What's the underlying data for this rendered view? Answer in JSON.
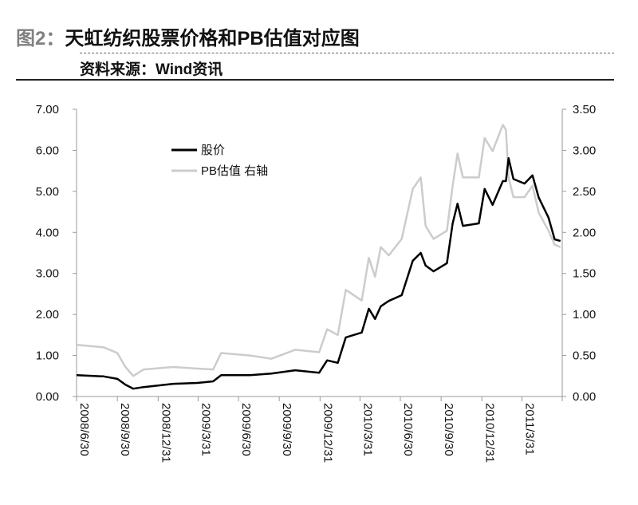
{
  "header": {
    "figure_number": "图2：",
    "title": "天虹纺织股票价格和PB估值对应图",
    "source": "资料来源：Wind资讯"
  },
  "chart_data": {
    "type": "line",
    "title": "天虹纺织股票价格和PB估值对应图",
    "x_ticks": [
      "2008/6/30",
      "2008/9/30",
      "2008/12/31",
      "2009/3/31",
      "2009/6/30",
      "2009/9/30",
      "2009/12/31",
      "2010/3/31",
      "2010/6/30",
      "2010/9/30",
      "2010/12/31",
      "2011/3/31"
    ],
    "x_range": [
      "2008/6/30",
      "2011/6/30"
    ],
    "y_left": {
      "ticks": [
        "0.00",
        "1.00",
        "2.00",
        "3.00",
        "4.00",
        "5.00",
        "6.00",
        "7.00"
      ],
      "range": [
        0,
        7
      ]
    },
    "y_right": {
      "ticks": [
        "0.00",
        "0.50",
        "1.00",
        "1.50",
        "2.00",
        "2.50",
        "3.00",
        "3.50"
      ],
      "range": [
        0,
        3.5
      ]
    },
    "legend_position": "top-left",
    "grid": false,
    "x": [
      "2008-06-30",
      "2008-08-30",
      "2008-09-30",
      "2008-10-18",
      "2008-11-05",
      "2008-11-28",
      "2009-02-03",
      "2009-03-29",
      "2009-05-04",
      "2009-05-22",
      "2009-07-26",
      "2009-09-12",
      "2009-11-05",
      "2009-12-29",
      "2010-01-16",
      "2010-02-09",
      "2010-02-27",
      "2010-04-04",
      "2010-04-20",
      "2010-05-04",
      "2010-05-17",
      "2010-06-04",
      "2010-07-03",
      "2010-07-28",
      "2010-08-15",
      "2010-08-26",
      "2010-09-13",
      "2010-10-13",
      "2010-10-26",
      "2010-11-06",
      "2010-11-18",
      "2010-12-24",
      "2011-01-06",
      "2011-01-24",
      "2011-02-16",
      "2011-02-23",
      "2011-03-01",
      "2011-03-12",
      "2011-04-06",
      "2011-04-24",
      "2011-05-08",
      "2011-05-30",
      "2011-06-13",
      "2011-06-26"
    ],
    "series": [
      {
        "name": "股价",
        "axis": "left",
        "color": "#000000",
        "values": [
          0.52,
          0.49,
          0.43,
          0.29,
          0.19,
          0.23,
          0.31,
          0.33,
          0.37,
          0.52,
          0.52,
          0.56,
          0.64,
          0.58,
          0.88,
          0.82,
          1.44,
          1.56,
          2.14,
          1.89,
          2.2,
          2.33,
          2.47,
          3.31,
          3.5,
          3.19,
          3.05,
          3.25,
          4.22,
          4.7,
          4.16,
          4.22,
          5.06,
          4.67,
          5.25,
          5.25,
          5.81,
          5.3,
          5.19,
          5.39,
          4.85,
          4.36,
          3.83,
          3.79
        ]
      },
      {
        "name": "PB估值 右轴",
        "axis": "right",
        "color": "#cccccc",
        "values": [
          0.63,
          0.6,
          0.53,
          0.36,
          0.25,
          0.33,
          0.36,
          0.34,
          0.33,
          0.53,
          0.5,
          0.46,
          0.57,
          0.54,
          0.82,
          0.75,
          1.3,
          1.17,
          1.69,
          1.46,
          1.82,
          1.72,
          1.92,
          2.53,
          2.67,
          2.08,
          1.92,
          2.02,
          2.57,
          2.96,
          2.67,
          2.67,
          3.15,
          2.99,
          3.31,
          3.25,
          2.67,
          2.43,
          2.43,
          2.57,
          2.24,
          2.02,
          1.85,
          1.82
        ]
      }
    ]
  }
}
